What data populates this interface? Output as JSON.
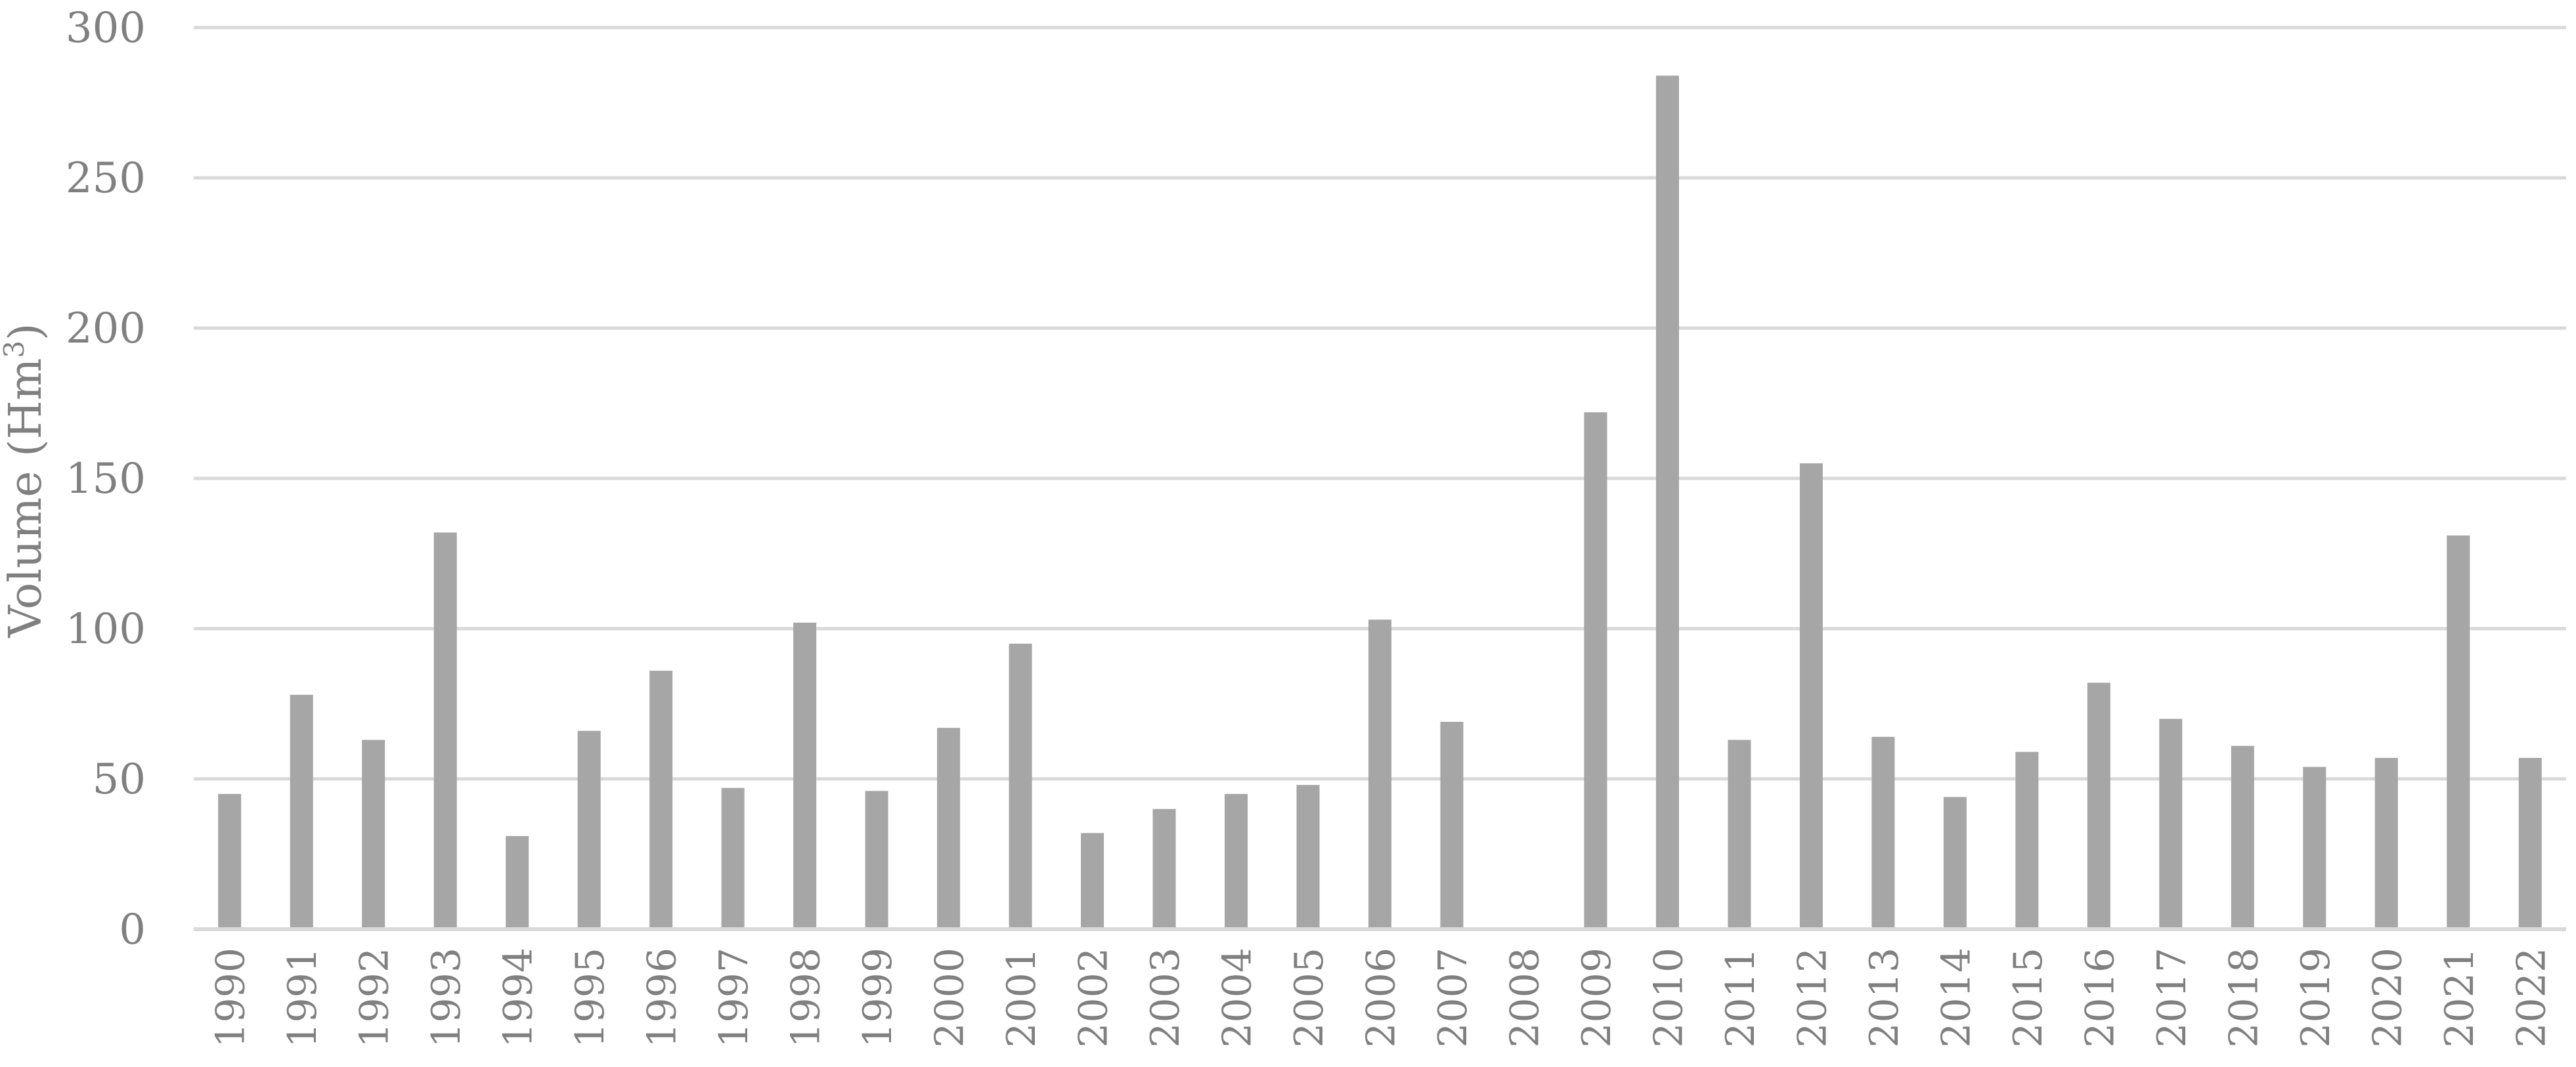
{
  "chart_data": {
    "type": "bar",
    "categories": [
      "1990",
      "1991",
      "1992",
      "1993",
      "1994",
      "1995",
      "1996",
      "1997",
      "1998",
      "1999",
      "2000",
      "2001",
      "2002",
      "2003",
      "2004",
      "2005",
      "2006",
      "2007",
      "2008",
      "2009",
      "2010",
      "2011",
      "2012",
      "2013",
      "2014",
      "2015",
      "2016",
      "2017",
      "2018",
      "2019",
      "2020",
      "2021",
      "2022"
    ],
    "values": [
      45,
      78,
      63,
      132,
      31,
      66,
      86,
      47,
      102,
      46,
      67,
      95,
      32,
      40,
      45,
      48,
      103,
      69,
      0,
      172,
      284,
      63,
      155,
      64,
      44,
      59,
      82,
      70,
      61,
      54,
      57,
      131,
      57
    ],
    "title": "",
    "xlabel": "",
    "ylabel": "Volume (Hm",
    "ylabel_superscript": "3",
    "ylabel_close": ")",
    "ylim": [
      0,
      300
    ],
    "yticks": [
      "0",
      "50",
      "100",
      "150",
      "200",
      "250",
      "300"
    ],
    "grid": true,
    "legend": "none",
    "colors": {
      "bar": "#a6a6a6",
      "grid": "#d9d9d9",
      "axis": "#d9d9d9",
      "text": "#808080"
    }
  }
}
